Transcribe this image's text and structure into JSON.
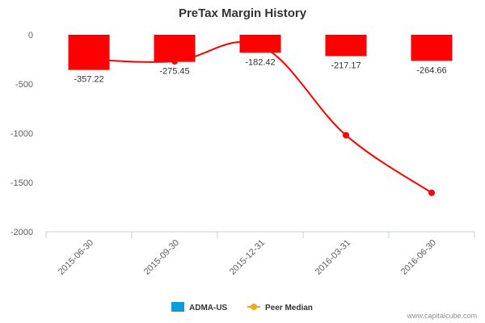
{
  "chart_data": {
    "type": "bar",
    "title": "PreTax Margin History",
    "categories": [
      "2015-06-30",
      "2015-09-30",
      "2015-12-31",
      "2016-03-31",
      "2016-06-30"
    ],
    "series": [
      {
        "name": "ADMA-US",
        "type": "bar",
        "values": [
          -357.22,
          -275.45,
          -182.42,
          -217.17,
          -264.66
        ],
        "color": "#ff0000",
        "legend_color": "#0d9be0"
      },
      {
        "name": "Peer Median",
        "type": "line",
        "values": [
          -250,
          -270,
          -110,
          -1020,
          -1605
        ],
        "color": "#ff0000",
        "legend_color": "#f5a623"
      }
    ],
    "data_labels": [
      "-357.22",
      "-275.45",
      "-182.42",
      "-217.17",
      "-264.66"
    ],
    "ylim": [
      -2000,
      0
    ],
    "y_ticks": [
      0,
      -500,
      -1000,
      -1500,
      -2000
    ],
    "grid": false,
    "legend_position": "bottom-center"
  },
  "credit": "www.capitalcube.com"
}
